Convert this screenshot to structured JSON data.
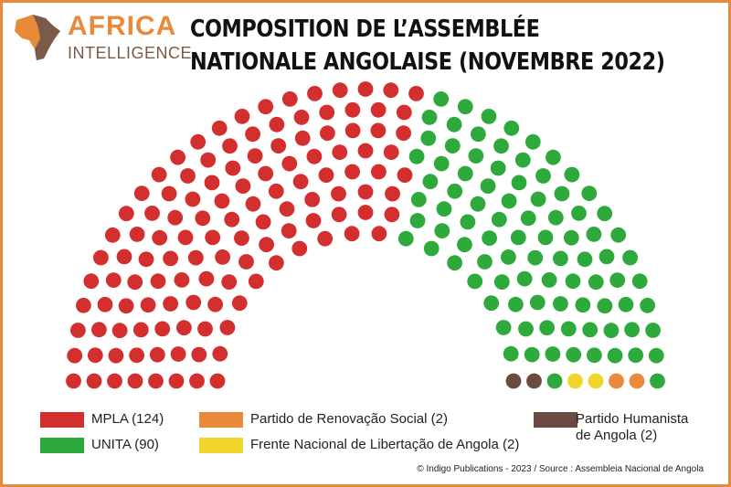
{
  "logo": {
    "top": "AFRICA",
    "bottom": "INTELLIGENCE"
  },
  "title": {
    "line1": "COMPOSITION DE L’ASSEMBLÉE",
    "line2": "NATIONALE ANGOLAISE (NOVEMBRE 2022)"
  },
  "chart_data": {
    "type": "parliament-hemicycle",
    "title": "COMPOSITION DE L’ASSEMBLÉE NATIONALE ANGOLAISE (NOVEMBRE 2022)",
    "total_seats": 220,
    "series": [
      {
        "name": "MPLA",
        "label": "MPLA (124)",
        "seats": 124,
        "color": "#d42f2f"
      },
      {
        "name": "UNITA",
        "label": "UNITA (90)",
        "seats": 90,
        "color": "#2eaa3c"
      },
      {
        "name": "Partido de Renovação Social",
        "label": "Partido de Renovação Social (2)",
        "seats": 2,
        "color": "#e98a3b"
      },
      {
        "name": "Frente Nacional de Libertação de Angola",
        "label": "Frente Nacional de Libertação de Angola (2)",
        "seats": 2,
        "color": "#f2d52a"
      },
      {
        "name": "Partido Humanista de Angola",
        "label_line1": "Partido Humanista",
        "label_line2": "de Angola (2)",
        "seats": 2,
        "color": "#6b4a42"
      }
    ]
  },
  "source": "© Indigo Publications - 2023 / Source : Assembleia Nacional de Angola"
}
